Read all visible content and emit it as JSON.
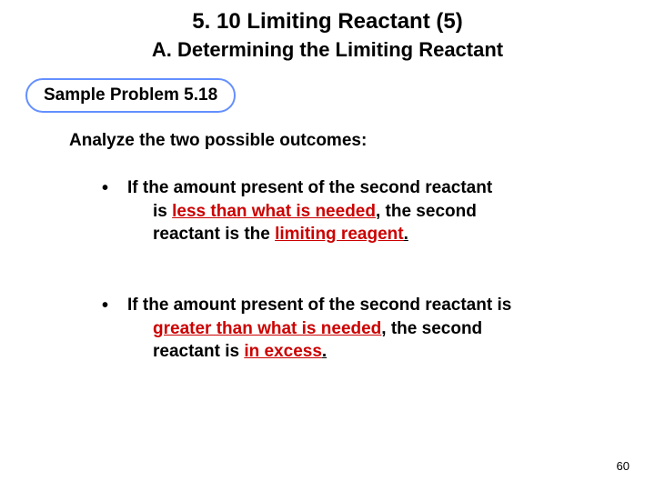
{
  "title": "5. 10 Limiting Reactant (5)",
  "subtitle": "A. Determining the Limiting Reactant",
  "pill": "Sample Problem 5.18",
  "section_head": "Analyze the two possible outcomes:",
  "b1_pre": "If the amount present of the second reactant",
  "b1_line2a": "is ",
  "b1_less": "less than what is needed",
  "b1_line2b": ", the second",
  "b1_line3a": "reactant is the ",
  "b1_limiting": "limiting reagent",
  "b1_end": ".",
  "b2_line1": "If the amount present of the second reactant is",
  "b2_greater": "greater than what is needed",
  "b2_line2b": ", the second",
  "b2_line3a": "reactant is ",
  "b2_excess": "in excess",
  "b2_end": ".",
  "pagenum": "60",
  "colors": {
    "pill_border": "#648fff",
    "emph": "#cc0000",
    "text": "#000000",
    "bg": "#ffffff"
  }
}
